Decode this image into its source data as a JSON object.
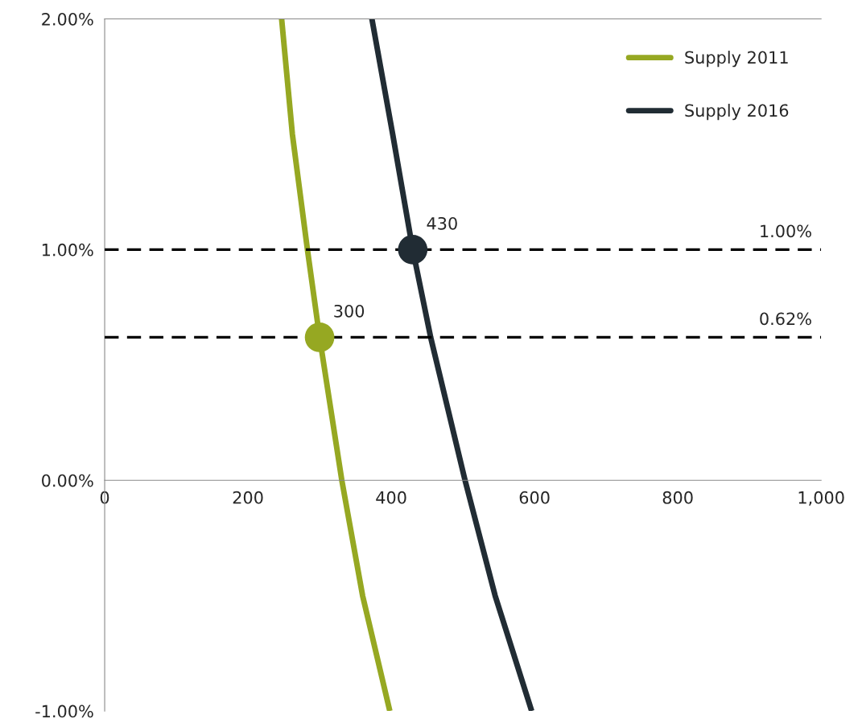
{
  "chart_data": {
    "type": "line",
    "xlim": [
      0,
      1000
    ],
    "xticks": [
      0,
      200,
      400,
      600,
      800,
      {
        "value": 1000,
        "label": "1,000"
      }
    ],
    "ylim": [
      -1,
      2
    ],
    "yticks": [
      {
        "value": 2,
        "label": "2.00%"
      },
      {
        "value": 1,
        "label": "1.00%"
      },
      {
        "value": 0,
        "label": "0.00%"
      },
      {
        "value": -1,
        "label": "-1.00%"
      }
    ],
    "series": [
      {
        "name": "Supply 2011",
        "color": "#96a822",
        "x": [
          247,
          262,
          283,
          300,
          331,
          360,
          398
        ],
        "values": [
          2,
          1.5,
          1,
          0.62,
          0,
          -0.5,
          -1
        ]
      },
      {
        "name": "Supply 2016",
        "color": "#212c34",
        "x": [
          373,
          402,
          430,
          455,
          503,
          545,
          596
        ],
        "values": [
          2,
          1.5,
          1,
          0.62,
          0,
          -0.5,
          -1
        ]
      },
      {
        "type": "scatter",
        "color": "#96a822",
        "x": [
          300
        ],
        "values": [
          0.62
        ],
        "marker": "circle"
      },
      {
        "type": "scatter",
        "color": "#212c34",
        "x": [
          430
        ],
        "values": [
          1
        ],
        "marker": "circle"
      }
    ],
    "annotations": [
      {
        "text": "300",
        "x": 300,
        "y": 0.62
      },
      {
        "text": "430",
        "x": 430,
        "y": 1
      }
    ],
    "ref_lines": [
      {
        "axis": "y",
        "value": 1,
        "label": "1.00%",
        "color": "#000000",
        "line_style": "dashed"
      },
      {
        "axis": "y",
        "value": 0.62,
        "label": "0.62%",
        "color": "#000000",
        "line_style": "dashed"
      }
    ],
    "legend": "top right",
    "grid": false,
    "marker": "none"
  }
}
